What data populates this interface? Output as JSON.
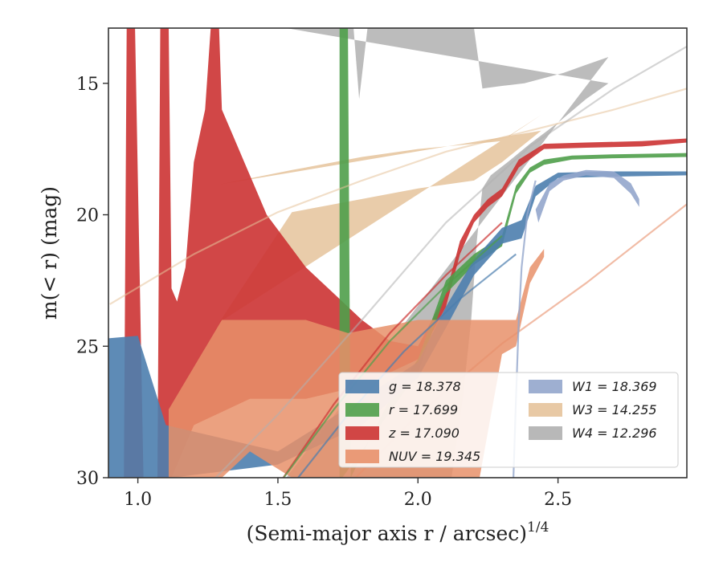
{
  "chart_data": {
    "type": "area",
    "title": "",
    "xlabel": "(Semi-major axis r / arcsec)",
    "xlabel_exponent": "1/4",
    "ylabel": "m(< r) (mag)",
    "xlim": [
      0.895,
      2.96
    ],
    "ylim": [
      30,
      12.9
    ],
    "y_inverted": true,
    "grid": false,
    "legend_position": "lower-right",
    "xticks": [
      1.0,
      1.5,
      2.0,
      2.5
    ],
    "xtick_labels": [
      "1.0",
      "1.5",
      "2.0",
      "2.5"
    ],
    "yticks": [
      15,
      20,
      25,
      30
    ],
    "ytick_labels": [
      "15",
      "20",
      "25",
      "30"
    ],
    "colors": {
      "g": "#4c7eae",
      "r": "#4f9e4a",
      "z": "#cc3333",
      "NUV": "#e8906a",
      "W1": "#93a6cc",
      "W3": "#e5c39b",
      "W4": "#b0b0b0"
    },
    "legend": [
      {
        "key": "g",
        "label": "g = 18.378"
      },
      {
        "key": "r",
        "label": "r = 17.699"
      },
      {
        "key": "z",
        "label": "z = 17.090"
      },
      {
        "key": "NUV",
        "label": "NUV = 19.345"
      },
      {
        "key": "W1",
        "label": "W1 = 18.369"
      },
      {
        "key": "W3",
        "label": "W3 = 14.255"
      },
      {
        "key": "W4",
        "label": "W4 = 12.296"
      }
    ],
    "series": [
      {
        "key": "W4",
        "opacity": 0.85,
        "upper": [
          [
            1.53,
            12.9
          ],
          [
            1.77,
            12.9
          ],
          [
            1.79,
            15.6
          ],
          [
            1.82,
            12.9
          ],
          [
            2.2,
            12.9
          ],
          [
            2.23,
            15.2
          ],
          [
            2.3,
            15.1
          ],
          [
            2.38,
            15.0
          ],
          [
            2.45,
            14.8
          ],
          [
            2.52,
            14.6
          ],
          [
            2.6,
            14.3
          ],
          [
            2.68,
            14.0
          ]
        ],
        "lower": [
          [
            1.53,
            30
          ],
          [
            2.12,
            30
          ],
          [
            2.16,
            27.0
          ],
          [
            2.19,
            24.0
          ],
          [
            2.21,
            21.0
          ],
          [
            2.23,
            19.0
          ],
          [
            2.26,
            18.5
          ],
          [
            2.32,
            18.0
          ],
          [
            2.4,
            17.3
          ],
          [
            2.5,
            16.5
          ],
          [
            2.6,
            15.6
          ],
          [
            2.68,
            15.0
          ]
        ]
      },
      {
        "key": "W3",
        "opacity": 0.85,
        "upper": [
          [
            1.29,
            18.85
          ],
          [
            1.55,
            18.3
          ],
          [
            1.8,
            17.8
          ],
          [
            2.0,
            17.5
          ],
          [
            2.2,
            17.3
          ],
          [
            2.3,
            17.2
          ],
          [
            2.44,
            16.2
          ]
        ],
        "lower": [
          [
            1.29,
            24.1
          ],
          [
            1.55,
            19.9
          ],
          [
            1.8,
            19.4
          ],
          [
            2.0,
            19.0
          ],
          [
            2.2,
            18.7
          ],
          [
            2.3,
            18.0
          ],
          [
            2.44,
            16.8
          ]
        ]
      },
      {
        "key": "z",
        "opacity": 0.9,
        "upper": [
          [
            0.95,
            30
          ],
          [
            0.96,
            12.9
          ],
          [
            0.99,
            12.9
          ],
          [
            1.02,
            30
          ],
          [
            1.07,
            30
          ],
          [
            1.08,
            12.9
          ],
          [
            1.11,
            12.9
          ],
          [
            1.12,
            22.8
          ],
          [
            1.14,
            23.3
          ],
          [
            1.17,
            22.0
          ],
          [
            1.2,
            18.0
          ],
          [
            1.24,
            16.0
          ],
          [
            1.26,
            12.9
          ],
          [
            1.29,
            12.9
          ],
          [
            1.3,
            16.0
          ],
          [
            1.34,
            17.0
          ],
          [
            1.38,
            18.0
          ],
          [
            1.42,
            19.0
          ],
          [
            1.46,
            20.0
          ],
          [
            1.53,
            21.0
          ],
          [
            1.6,
            22.0
          ],
          [
            1.7,
            23.0
          ],
          [
            1.8,
            24.0
          ],
          [
            1.9,
            24.8
          ],
          [
            2.0,
            25.0
          ],
          [
            2.1,
            23.0
          ],
          [
            2.15,
            21.0
          ],
          [
            2.2,
            20.0
          ],
          [
            2.25,
            19.4
          ],
          [
            2.3,
            19.0
          ],
          [
            2.36,
            17.9
          ],
          [
            2.45,
            17.3
          ],
          [
            2.6,
            17.25
          ],
          [
            2.8,
            17.2
          ],
          [
            2.96,
            17.1
          ]
        ],
        "lower": [
          [
            2.96,
            17.25
          ],
          [
            2.8,
            17.4
          ],
          [
            2.6,
            17.45
          ],
          [
            2.45,
            17.5
          ],
          [
            2.36,
            18.2
          ],
          [
            2.3,
            19.3
          ],
          [
            2.25,
            19.7
          ],
          [
            2.2,
            20.3
          ],
          [
            2.15,
            21.5
          ],
          [
            2.1,
            23.5
          ],
          [
            2.0,
            25.5
          ],
          [
            1.9,
            26.0
          ],
          [
            1.8,
            26.5
          ],
          [
            1.6,
            27.0
          ],
          [
            1.53,
            27.0
          ],
          [
            1.4,
            27.0
          ],
          [
            1.3,
            27.5
          ],
          [
            1.2,
            28.0
          ],
          [
            1.12,
            30
          ],
          [
            0.95,
            30
          ]
        ]
      },
      {
        "key": "r",
        "opacity": 0.9,
        "upper": [
          [
            1.72,
            12.9
          ],
          [
            1.75,
            12.9
          ],
          [
            1.76,
            30
          ],
          [
            1.9,
            27.0
          ],
          [
            2.0,
            25.5
          ],
          [
            2.1,
            22.5
          ],
          [
            2.2,
            21.5
          ],
          [
            2.3,
            20.8
          ],
          [
            2.35,
            18.9
          ],
          [
            2.4,
            18.2
          ],
          [
            2.45,
            17.9
          ],
          [
            2.55,
            17.75
          ],
          [
            2.7,
            17.7
          ],
          [
            2.96,
            17.65
          ]
        ],
        "lower": [
          [
            2.96,
            17.8
          ],
          [
            2.7,
            17.85
          ],
          [
            2.55,
            17.9
          ],
          [
            2.45,
            18.1
          ],
          [
            2.4,
            18.4
          ],
          [
            2.35,
            19.2
          ],
          [
            2.3,
            21.2
          ],
          [
            2.2,
            21.9
          ],
          [
            2.1,
            23.0
          ],
          [
            2.0,
            26.0
          ],
          [
            1.9,
            27.5
          ],
          [
            1.73,
            30
          ],
          [
            1.72,
            30
          ]
        ]
      },
      {
        "key": "g",
        "opacity": 0.9,
        "upper": [
          [
            0.895,
            24.7
          ],
          [
            1.0,
            24.6
          ],
          [
            1.1,
            28.0
          ],
          [
            1.5,
            29.0
          ],
          [
            1.8,
            27.0
          ],
          [
            2.0,
            25.6
          ],
          [
            2.1,
            23.5
          ],
          [
            2.2,
            21.7
          ],
          [
            2.3,
            20.5
          ],
          [
            2.37,
            20.2
          ],
          [
            2.42,
            18.9
          ],
          [
            2.5,
            18.4
          ],
          [
            2.7,
            18.35
          ],
          [
            2.96,
            18.35
          ]
        ],
        "lower": [
          [
            2.96,
            18.5
          ],
          [
            2.7,
            18.55
          ],
          [
            2.5,
            18.6
          ],
          [
            2.42,
            19.3
          ],
          [
            2.37,
            20.9
          ],
          [
            2.3,
            21.1
          ],
          [
            2.2,
            22.3
          ],
          [
            2.1,
            24.3
          ],
          [
            2.0,
            26.2
          ],
          [
            1.8,
            28.0
          ],
          [
            1.5,
            29.5
          ],
          [
            1.12,
            30
          ],
          [
            0.895,
            30
          ]
        ]
      },
      {
        "key": "NUV",
        "opacity": 0.85,
        "upper": [
          [
            1.11,
            27.4
          ],
          [
            1.3,
            24.0
          ],
          [
            1.6,
            24.0
          ],
          [
            1.75,
            24.5
          ],
          [
            2.0,
            24.0
          ],
          [
            2.2,
            24.0
          ],
          [
            2.35,
            24.0
          ],
          [
            2.4,
            22.0
          ],
          [
            2.45,
            21.3
          ]
        ],
        "lower": [
          [
            2.45,
            21.6
          ],
          [
            2.4,
            22.6
          ],
          [
            2.35,
            25.0
          ],
          [
            2.3,
            25.3
          ],
          [
            2.22,
            30
          ],
          [
            1.75,
            30
          ],
          [
            1.55,
            30
          ],
          [
            1.4,
            29.0
          ],
          [
            1.3,
            30
          ],
          [
            1.11,
            30
          ]
        ]
      },
      {
        "key": "W1",
        "opacity": 0.9,
        "upper": [
          [
            2.42,
            19.8
          ],
          [
            2.47,
            18.8
          ],
          [
            2.52,
            18.5
          ],
          [
            2.6,
            18.3
          ],
          [
            2.7,
            18.35
          ],
          [
            2.76,
            18.8
          ],
          [
            2.79,
            19.4
          ]
        ],
        "lower": [
          [
            2.79,
            19.7
          ],
          [
            2.76,
            19.2
          ],
          [
            2.7,
            18.6
          ],
          [
            2.6,
            18.5
          ],
          [
            2.52,
            18.7
          ],
          [
            2.47,
            19.1
          ],
          [
            2.43,
            20.3
          ]
        ]
      }
    ],
    "model_curves": [
      {
        "key": "W3",
        "opacity": 0.55,
        "points": [
          [
            0.9,
            23.4
          ],
          [
            1.2,
            21.5
          ],
          [
            1.5,
            19.9
          ],
          [
            1.8,
            18.7
          ],
          [
            2.1,
            17.6
          ],
          [
            2.4,
            16.8
          ],
          [
            2.7,
            16.0
          ],
          [
            2.96,
            15.2
          ]
        ]
      },
      {
        "key": "W4",
        "opacity": 0.55,
        "points": [
          [
            1.25,
            30.3
          ],
          [
            1.5,
            27.6
          ],
          [
            1.8,
            24.0
          ],
          [
            2.1,
            20.3
          ],
          [
            2.4,
            17.4
          ],
          [
            2.7,
            15.2
          ],
          [
            2.96,
            13.6
          ]
        ]
      },
      {
        "key": "z",
        "opacity": 0.7,
        "points": [
          [
            1.5,
            30.3
          ],
          [
            1.7,
            27.2
          ],
          [
            1.9,
            24.5
          ],
          [
            2.1,
            22.3
          ],
          [
            2.3,
            20.3
          ]
        ]
      },
      {
        "key": "r",
        "opacity": 0.7,
        "points": [
          [
            1.5,
            30.3
          ],
          [
            1.7,
            27.4
          ],
          [
            1.9,
            24.8
          ],
          [
            2.1,
            22.7
          ],
          [
            2.3,
            20.8
          ]
        ]
      },
      {
        "key": "g",
        "opacity": 0.7,
        "points": [
          [
            1.55,
            30.3
          ],
          [
            1.75,
            27.6
          ],
          [
            1.95,
            25.2
          ],
          [
            2.15,
            23.2
          ],
          [
            2.35,
            21.5
          ]
        ]
      },
      {
        "key": "NUV",
        "opacity": 0.6,
        "points": [
          [
            1.75,
            30.3
          ],
          [
            2.0,
            27.6
          ],
          [
            2.3,
            24.9
          ],
          [
            2.6,
            22.6
          ],
          [
            2.96,
            19.6
          ]
        ]
      },
      {
        "key": "W1",
        "opacity": 0.8,
        "points": [
          [
            2.34,
            30.3
          ],
          [
            2.35,
            27.0
          ],
          [
            2.36,
            24.0
          ],
          [
            2.37,
            22.0
          ],
          [
            2.39,
            20.0
          ],
          [
            2.42,
            18.7
          ]
        ]
      }
    ]
  }
}
